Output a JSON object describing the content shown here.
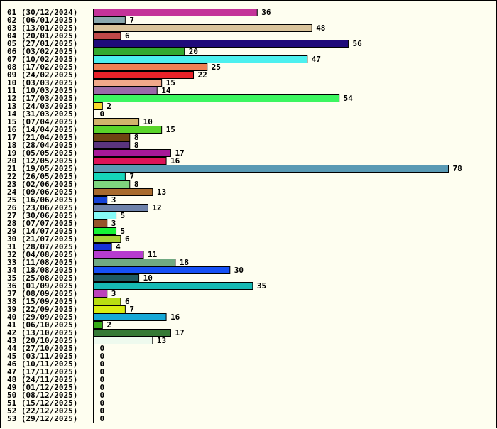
{
  "chart_data": {
    "type": "bar",
    "orientation": "horizontal",
    "background": "#fefef0",
    "categories": [
      "01 (30/12/2024)",
      "02 (06/01/2025)",
      "03 (13/01/2025)",
      "04 (20/01/2025)",
      "05 (27/01/2025)",
      "06 (03/02/2025)",
      "07 (10/02/2025)",
      "08 (17/02/2025)",
      "09 (24/02/2025)",
      "10 (03/03/2025)",
      "11 (10/03/2025)",
      "12 (17/03/2025)",
      "13 (24/03/2025)",
      "14 (31/03/2025)",
      "15 (07/04/2025)",
      "16 (14/04/2025)",
      "17 (21/04/2025)",
      "18 (28/04/2025)",
      "19 (05/05/2025)",
      "20 (12/05/2025)",
      "21 (19/05/2025)",
      "22 (26/05/2025)",
      "23 (02/06/2025)",
      "24 (09/06/2025)",
      "25 (16/06/2025)",
      "26 (23/06/2025)",
      "27 (30/06/2025)",
      "28 (07/07/2025)",
      "29 (14/07/2025)",
      "30 (21/07/2025)",
      "31 (28/07/2025)",
      "32 (04/08/2025)",
      "33 (11/08/2025)",
      "34 (18/08/2025)",
      "35 (25/08/2025)",
      "36 (01/09/2025)",
      "37 (08/09/2025)",
      "38 (15/09/2025)",
      "39 (22/09/2025)",
      "40 (29/09/2025)",
      "41 (06/10/2025)",
      "42 (13/10/2025)",
      "43 (20/10/2025)",
      "44 (27/10/2025)",
      "45 (03/11/2025)",
      "46 (10/11/2025)",
      "47 (17/11/2025)",
      "48 (24/11/2025)",
      "49 (01/12/2025)",
      "50 (08/12/2025)",
      "51 (15/12/2025)",
      "52 (22/12/2025)",
      "53 (29/12/2025)"
    ],
    "values": [
      36,
      7,
      48,
      6,
      56,
      20,
      47,
      25,
      22,
      15,
      14,
      54,
      2,
      0,
      10,
      15,
      8,
      8,
      17,
      16,
      78,
      7,
      8,
      13,
      3,
      12,
      5,
      3,
      5,
      6,
      4,
      11,
      18,
      30,
      10,
      35,
      3,
      6,
      7,
      16,
      2,
      17,
      13,
      0,
      0,
      0,
      0,
      0,
      0,
      0,
      0,
      0,
      0
    ],
    "colors": [
      "#c43399",
      "#8aa8ad",
      "#d9c39a",
      "#c04848",
      "#1f0a7a",
      "#33aa2f",
      "#4cf0ef",
      "#ee8055",
      "#e82229",
      "#f0a98a",
      "#9a6aa8",
      "#3cf660",
      "#f8d82c",
      "#ffffff",
      "#d2b46c",
      "#5ad42a",
      "#6e4412",
      "#5a347e",
      "#a81898",
      "#de1258",
      "#5a9ab4",
      "#16d6b9",
      "#7ed67e",
      "#a86a2e",
      "#1642d6",
      "#6e82aa",
      "#86faf6",
      "#96542a",
      "#16f236",
      "#a8d236",
      "#1630d6",
      "#b63ccf",
      "#70aa82",
      "#1650f6",
      "#1e5a62",
      "#16bab4",
      "#bc42bc",
      "#b8de12",
      "#d8ee12",
      "#16a8d6",
      "#36aa16",
      "#367a36",
      "#eefaee",
      "#ffffff",
      "#ffffff",
      "#ffffff",
      "#ffffff",
      "#ffffff",
      "#ffffff",
      "#ffffff",
      "#ffffff",
      "#ffffff",
      "#ffffff"
    ],
    "xlim": [
      0,
      78
    ],
    "grid": false,
    "legend": "none"
  }
}
